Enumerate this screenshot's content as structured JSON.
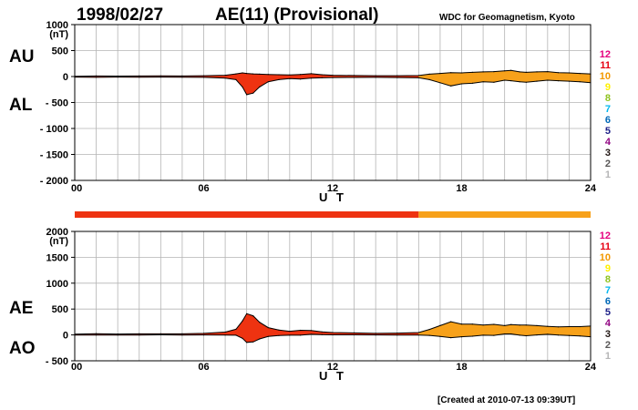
{
  "header": {
    "date": "1998/02/27",
    "title": "AE(11) (Provisional)",
    "credit": "WDC for Geomagnetism, Kyoto"
  },
  "footer": {
    "created": "[Created at 2010-07-13 09:39UT]"
  },
  "legend": {
    "station_counts": [
      {
        "label": "12",
        "color": "#e4007f"
      },
      {
        "label": "11",
        "color": "#e60012"
      },
      {
        "label": "10",
        "color": "#f39800"
      },
      {
        "label": "9",
        "color": "#fff100"
      },
      {
        "label": "8",
        "color": "#8fc31f"
      },
      {
        "label": "7",
        "color": "#00b7ee"
      },
      {
        "label": "6",
        "color": "#0068b7"
      },
      {
        "label": "5",
        "color": "#1d2088"
      },
      {
        "label": "4",
        "color": "#920783"
      },
      {
        "label": "3",
        "color": "#231815"
      },
      {
        "label": "2",
        "color": "#595757"
      },
      {
        "label": "1",
        "color": "#b5b5b6"
      }
    ]
  },
  "colors": {
    "count_11": "#ee3311",
    "count_10": "#f7a11a",
    "grid": "#b4b4b4",
    "outline": "#000000"
  },
  "chart_data": [
    {
      "type": "area",
      "panel": "AU/AL",
      "side_labels": {
        "upper": "AU",
        "lower": "AL"
      },
      "unit": "(nT)",
      "xlabel": "U T",
      "x_ticks": [
        "00",
        "06",
        "12",
        "18",
        "24"
      ],
      "y_ticks": [
        "1000",
        "500",
        "0",
        "- 500",
        "- 1000",
        "- 1500",
        "- 2000"
      ],
      "xlim": [
        0,
        24
      ],
      "ylim": [
        -2000,
        1000
      ],
      "grid": true,
      "color_change_hour": 16,
      "series": [
        {
          "name": "AU",
          "x": [
            0,
            1,
            2,
            3,
            4,
            5,
            6,
            7,
            7.5,
            7.8,
            8.0,
            8.3,
            8.6,
            9.0,
            9.5,
            10,
            10.5,
            11,
            11.5,
            12,
            13,
            14,
            15,
            16,
            16.5,
            17,
            17.5,
            18,
            18.5,
            19,
            19.5,
            20,
            20.3,
            20.7,
            21,
            21.5,
            22,
            22.5,
            23,
            23.5,
            24
          ],
          "values": [
            5,
            10,
            8,
            10,
            12,
            10,
            15,
            25,
            50,
            70,
            60,
            50,
            45,
            40,
            35,
            30,
            40,
            55,
            35,
            25,
            20,
            15,
            15,
            20,
            45,
            60,
            75,
            70,
            80,
            90,
            95,
            110,
            120,
            90,
            80,
            90,
            95,
            75,
            70,
            60,
            50
          ]
        },
        {
          "name": "AL",
          "x": [
            0,
            1,
            2,
            3,
            4,
            5,
            6,
            7,
            7.5,
            7.8,
            8.0,
            8.3,
            8.6,
            9.0,
            9.5,
            10,
            10.5,
            11,
            11.5,
            12,
            13,
            14,
            15,
            16,
            16.5,
            17,
            17.5,
            18,
            18.5,
            19,
            19.5,
            20,
            20.3,
            20.7,
            21,
            21.5,
            22,
            22.5,
            23,
            23.5,
            24
          ],
          "values": [
            -10,
            -15,
            -10,
            -12,
            -10,
            -12,
            -15,
            -30,
            -60,
            -200,
            -350,
            -320,
            -200,
            -100,
            -60,
            -40,
            -50,
            -30,
            -25,
            -20,
            -18,
            -15,
            -20,
            -25,
            -60,
            -120,
            -180,
            -140,
            -130,
            -100,
            -110,
            -70,
            -80,
            -100,
            -110,
            -90,
            -70,
            -80,
            -90,
            -100,
            -120
          ]
        }
      ]
    },
    {
      "type": "area",
      "panel": "AE/AO",
      "side_labels": {
        "upper": "AE",
        "lower": "AO"
      },
      "unit": "(nT)",
      "xlabel": "U T",
      "x_ticks": [
        "00",
        "06",
        "12",
        "18",
        "24"
      ],
      "y_ticks": [
        "2000",
        "1500",
        "1000",
        "500",
        "0",
        "- 500"
      ],
      "xlim": [
        0,
        24
      ],
      "ylim": [
        -500,
        2000
      ],
      "grid": true,
      "color_change_hour": 16,
      "series": [
        {
          "name": "AE",
          "x": [
            0,
            1,
            2,
            3,
            4,
            5,
            6,
            7,
            7.5,
            7.8,
            8.0,
            8.3,
            8.6,
            9.0,
            9.5,
            10,
            10.5,
            11,
            11.5,
            12,
            13,
            14,
            15,
            16,
            16.5,
            17,
            17.5,
            18,
            18.5,
            19,
            19.5,
            20,
            20.3,
            20.7,
            21,
            21.5,
            22,
            22.5,
            23,
            23.5,
            24
          ],
          "values": [
            15,
            25,
            18,
            22,
            22,
            22,
            30,
            55,
            110,
            270,
            410,
            370,
            245,
            140,
            95,
            70,
            90,
            85,
            60,
            45,
            38,
            30,
            35,
            45,
            105,
            180,
            255,
            210,
            210,
            190,
            205,
            180,
            200,
            190,
            190,
            180,
            165,
            155,
            160,
            160,
            170
          ]
        },
        {
          "name": "AO",
          "x": [
            0,
            1,
            2,
            3,
            4,
            5,
            6,
            7,
            7.5,
            7.8,
            8.0,
            8.3,
            8.6,
            9.0,
            9.5,
            10,
            10.5,
            11,
            11.5,
            12,
            13,
            14,
            15,
            16,
            16.5,
            17,
            17.5,
            18,
            18.5,
            19,
            19.5,
            20,
            20.3,
            20.7,
            21,
            21.5,
            22,
            22.5,
            23,
            23.5,
            24
          ],
          "values": [
            -2,
            -2,
            -1,
            -1,
            1,
            -1,
            0,
            -2,
            -5,
            -65,
            -145,
            -135,
            -78,
            -30,
            -12,
            -5,
            -5,
            12,
            5,
            2,
            1,
            0,
            -2,
            -2,
            -8,
            -30,
            -52,
            -35,
            -25,
            -5,
            -8,
            20,
            20,
            -5,
            -15,
            0,
            12,
            -2,
            -10,
            -20,
            -35
          ]
        }
      ]
    }
  ]
}
